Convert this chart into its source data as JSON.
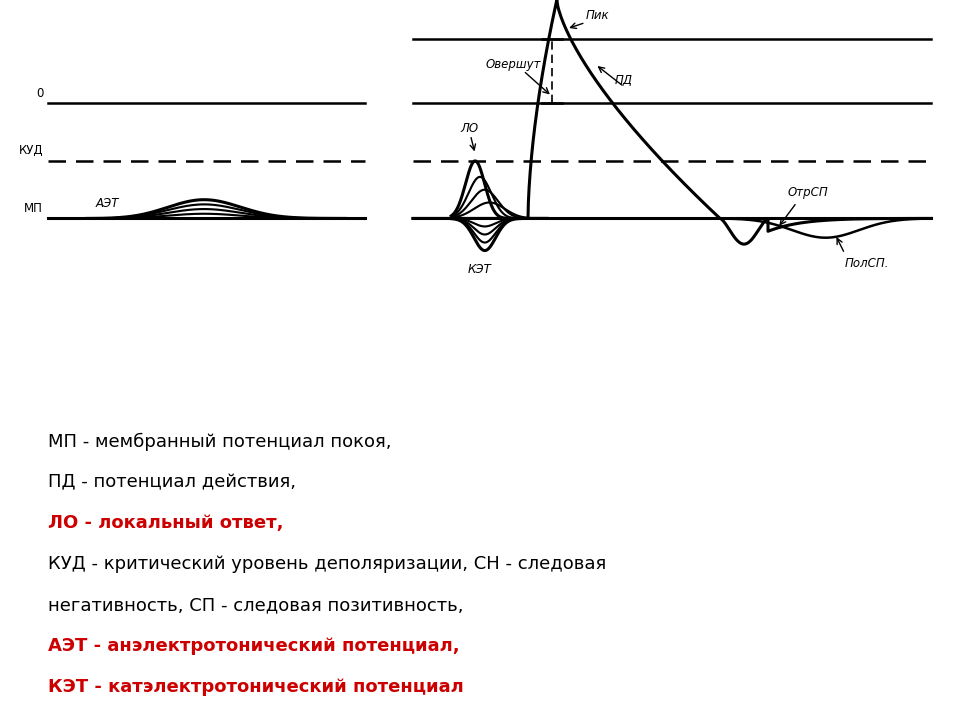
{
  "bg_color": "#ffffff",
  "line_color": "#000000",
  "red_color": "#cc0000",
  "legend_lines": [
    {
      "text": "МП - мембранный потенциал покоя,",
      "color": "#000000",
      "bold": false
    },
    {
      "text": "ПД - потенциал действия,",
      "color": "#000000",
      "bold": false
    },
    {
      "text": "ЛО - локальный ответ,",
      "color": "#cc0000",
      "bold": true
    },
    {
      "text": "КУД - критический уровень деполяризации, СН - следовая",
      "color": "#000000",
      "bold": false
    },
    {
      "text": "негативность, СП - следовая позитивность,",
      "color": "#000000",
      "bold": false
    },
    {
      "text": "АЭТ - анэлектротонический потенциал,",
      "color": "#cc0000",
      "bold": true
    },
    {
      "text": "КЭТ - катэлектротонический потенциал",
      "color": "#cc0000",
      "bold": true
    }
  ]
}
